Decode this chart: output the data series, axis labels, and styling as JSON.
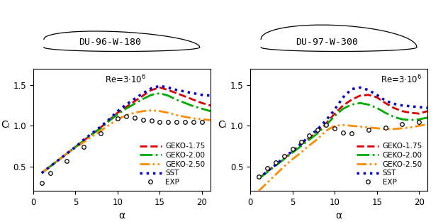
{
  "left_title": "DU-96-W-180",
  "right_title": "DU-97-W-300",
  "ylabel": "Cₗ",
  "xlabel": "α",
  "xlim": [
    0,
    21
  ],
  "ylim": [
    0.2,
    1.7
  ],
  "yticks": [
    0.5,
    1.0,
    1.5
  ],
  "xticks": [
    0,
    5,
    10,
    15,
    20
  ],
  "left": {
    "geko175_x": [
      1,
      2,
      3,
      4,
      5,
      6,
      7,
      8,
      9,
      10,
      11,
      12,
      13,
      14,
      15,
      16,
      17,
      18,
      19,
      20,
      21
    ],
    "geko175_y": [
      0.42,
      0.5,
      0.58,
      0.66,
      0.74,
      0.82,
      0.9,
      0.98,
      1.07,
      1.16,
      1.23,
      1.3,
      1.37,
      1.44,
      1.47,
      1.44,
      1.4,
      1.36,
      1.32,
      1.28,
      1.25
    ],
    "geko200_x": [
      1,
      2,
      3,
      4,
      5,
      6,
      7,
      8,
      9,
      10,
      11,
      12,
      13,
      14,
      15,
      16,
      17,
      18,
      19,
      20,
      21
    ],
    "geko200_y": [
      0.42,
      0.5,
      0.58,
      0.66,
      0.74,
      0.82,
      0.9,
      0.97,
      1.06,
      1.14,
      1.21,
      1.27,
      1.33,
      1.38,
      1.4,
      1.37,
      1.32,
      1.28,
      1.24,
      1.21,
      1.18
    ],
    "geko250_x": [
      1,
      2,
      3,
      4,
      5,
      6,
      7,
      8,
      9,
      10,
      11,
      12,
      13,
      14,
      15,
      16,
      17,
      18,
      19,
      20,
      21
    ],
    "geko250_y": [
      0.42,
      0.5,
      0.58,
      0.66,
      0.73,
      0.8,
      0.87,
      0.94,
      1.01,
      1.08,
      1.13,
      1.16,
      1.18,
      1.19,
      1.18,
      1.16,
      1.13,
      1.11,
      1.09,
      1.08,
      1.07
    ],
    "sst_x": [
      1,
      2,
      3,
      4,
      5,
      6,
      7,
      8,
      9,
      10,
      11,
      12,
      13,
      14,
      15,
      16,
      17,
      18,
      19,
      20,
      21
    ],
    "sst_y": [
      0.42,
      0.5,
      0.58,
      0.66,
      0.74,
      0.83,
      0.91,
      0.99,
      1.08,
      1.18,
      1.26,
      1.33,
      1.4,
      1.46,
      1.49,
      1.47,
      1.44,
      1.42,
      1.4,
      1.38,
      1.37
    ],
    "exp_x": [
      1,
      2,
      4,
      6,
      8,
      10,
      11,
      12,
      13,
      14,
      15,
      16,
      17,
      18,
      19,
      20
    ],
    "exp_y": [
      0.3,
      0.42,
      0.57,
      0.74,
      0.91,
      1.09,
      1.12,
      1.1,
      1.07,
      1.06,
      1.05,
      1.05,
      1.05,
      1.05,
      1.05,
      1.05
    ]
  },
  "right": {
    "geko175_x": [
      1,
      2,
      3,
      4,
      5,
      6,
      7,
      8,
      9,
      10,
      11,
      12,
      13,
      14,
      15,
      16,
      17,
      18,
      19,
      20,
      21
    ],
    "geko175_y": [
      0.35,
      0.44,
      0.52,
      0.6,
      0.68,
      0.77,
      0.85,
      0.93,
      1.03,
      1.15,
      1.25,
      1.32,
      1.37,
      1.38,
      1.35,
      1.28,
      1.22,
      1.18,
      1.16,
      1.15,
      1.18
    ],
    "geko200_x": [
      1,
      2,
      3,
      4,
      5,
      6,
      7,
      8,
      9,
      10,
      11,
      12,
      13,
      14,
      15,
      16,
      17,
      18,
      19,
      20,
      21
    ],
    "geko200_y": [
      0.35,
      0.43,
      0.51,
      0.59,
      0.67,
      0.75,
      0.83,
      0.91,
      1.01,
      1.12,
      1.21,
      1.26,
      1.28,
      1.26,
      1.22,
      1.16,
      1.11,
      1.08,
      1.07,
      1.08,
      1.1
    ],
    "geko250_x": [
      1,
      2,
      3,
      4,
      5,
      6,
      7,
      8,
      9,
      10,
      11,
      12,
      13,
      14,
      15,
      16,
      17,
      18,
      19,
      20,
      21
    ],
    "geko250_y": [
      0.2,
      0.3,
      0.4,
      0.5,
      0.59,
      0.67,
      0.76,
      0.84,
      0.94,
      1.0,
      1.01,
      1.0,
      0.99,
      0.98,
      0.97,
      0.96,
      0.96,
      0.97,
      0.98,
      1.0,
      1.02
    ],
    "sst_x": [
      1,
      2,
      3,
      4,
      5,
      6,
      7,
      8,
      9,
      10,
      11,
      12,
      13,
      14,
      15,
      16,
      17,
      18,
      19,
      20,
      21
    ],
    "sst_y": [
      0.35,
      0.44,
      0.52,
      0.61,
      0.69,
      0.78,
      0.87,
      0.96,
      1.07,
      1.2,
      1.35,
      1.45,
      1.47,
      1.44,
      1.38,
      1.31,
      1.27,
      1.25,
      1.24,
      1.23,
      1.22
    ],
    "exp_x": [
      1,
      2,
      3,
      4,
      5,
      6,
      7,
      8,
      9,
      10,
      11,
      12,
      14,
      16,
      18,
      20
    ],
    "exp_y": [
      0.38,
      0.48,
      0.55,
      0.63,
      0.72,
      0.8,
      0.88,
      0.95,
      1.01,
      0.97,
      0.92,
      0.91,
      0.95,
      0.98,
      1.02,
      1.05
    ]
  },
  "colors": {
    "geko175": "#dd0000",
    "geko200": "#00aa00",
    "geko250": "#ff8c00",
    "sst": "#0000cc",
    "exp": "#000000"
  },
  "lw": 2.0,
  "legend_fontsize": 7.5,
  "tick_fontsize": 8.5,
  "label_fontsize": 10
}
